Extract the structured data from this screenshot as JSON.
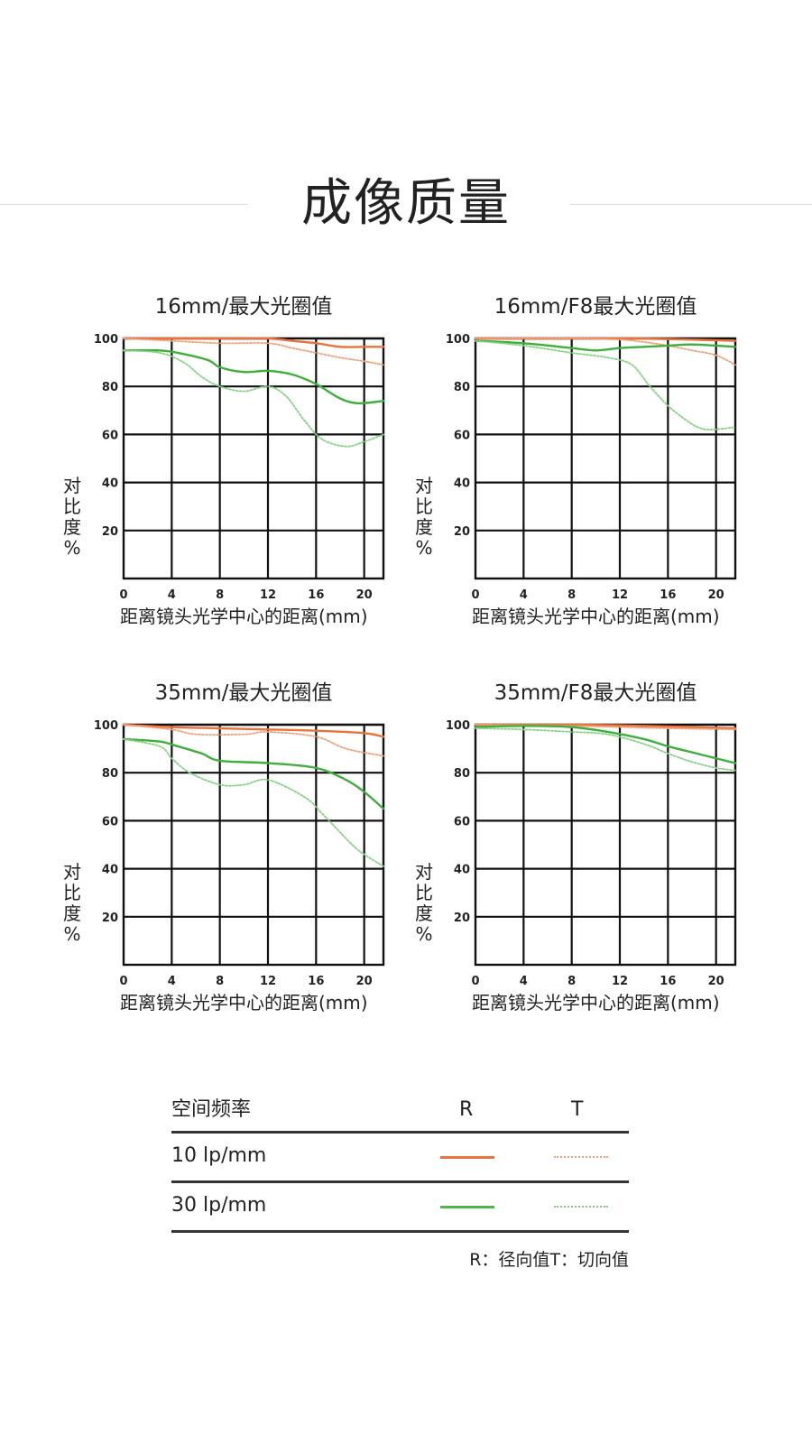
{
  "page_title": "成像质量",
  "colors": {
    "orange": "#e8743b",
    "green": "#4cb84a",
    "grid": "#111111"
  },
  "chart_data": [
    {
      "type": "line",
      "title": "16mm/最大光圈值",
      "ylabel": "对比度%",
      "ylabel_chars": [
        "对",
        "比",
        "度",
        "%"
      ],
      "xlabel": "距离镜头光学中心的距离(mm)",
      "xlim": [
        0,
        21.6
      ],
      "ylim": [
        0,
        100
      ],
      "xticks": [
        0,
        4,
        8,
        12,
        16,
        20
      ],
      "yticks": [
        20,
        40,
        60,
        80,
        100
      ],
      "grid": true,
      "series": [
        {
          "name": "10 lp/mm R",
          "color": "orange",
          "dashed": false,
          "x": [
            0,
            4,
            8,
            12,
            14,
            16,
            18,
            20,
            21.6
          ],
          "y": [
            100,
            100,
            100,
            100,
            99,
            98,
            96.5,
            96.5,
            96.5
          ]
        },
        {
          "name": "10 lp/mm T",
          "color": "orange",
          "dashed": true,
          "x": [
            0,
            4,
            8,
            12,
            14,
            16,
            18,
            20,
            21.6
          ],
          "y": [
            100,
            99,
            98,
            98,
            96,
            94,
            92,
            90.5,
            89
          ]
        },
        {
          "name": "30 lp/mm R",
          "color": "green",
          "dashed": false,
          "x": [
            0,
            3,
            4.5,
            7,
            8,
            10,
            12,
            14,
            16,
            18,
            19.5,
            21.6
          ],
          "y": [
            95,
            95,
            94,
            91,
            88,
            86,
            86.5,
            85,
            81,
            75,
            73,
            74
          ]
        },
        {
          "name": "30 lp/mm T",
          "color": "green",
          "dashed": true,
          "x": [
            0,
            3,
            5,
            6.5,
            8,
            10,
            12,
            13.5,
            15,
            16.5,
            18.5,
            20,
            21.6
          ],
          "y": [
            95,
            94,
            90,
            84,
            80,
            78,
            80,
            76,
            66,
            58,
            55,
            57,
            60
          ]
        }
      ]
    },
    {
      "type": "line",
      "title": "16mm/F8最大光圈值",
      "ylabel": "对比度%",
      "ylabel_chars": [
        "对",
        "比",
        "度",
        "%"
      ],
      "xlabel": "距离镜头光学中心的距离(mm)",
      "xlim": [
        0,
        21.6
      ],
      "ylim": [
        0,
        100
      ],
      "xticks": [
        0,
        4,
        8,
        12,
        16,
        20
      ],
      "yticks": [
        20,
        40,
        60,
        80,
        100
      ],
      "grid": true,
      "series": [
        {
          "name": "10 lp/mm R",
          "color": "orange",
          "dashed": false,
          "x": [
            0,
            8,
            13,
            18,
            21.6
          ],
          "y": [
            100,
            100,
            100,
            99.5,
            99
          ]
        },
        {
          "name": "10 lp/mm T",
          "color": "orange",
          "dashed": true,
          "x": [
            0,
            8,
            12,
            14,
            16,
            18,
            20,
            21.6
          ],
          "y": [
            100,
            100,
            99.5,
            98.5,
            97,
            95,
            93,
            89
          ]
        },
        {
          "name": "30 lp/mm R",
          "color": "green",
          "dashed": false,
          "x": [
            0,
            4,
            8,
            10,
            12,
            14,
            16,
            18,
            20,
            21.6
          ],
          "y": [
            99,
            98,
            96,
            95,
            96,
            96.5,
            97,
            97.5,
            97,
            96.5
          ]
        },
        {
          "name": "30 lp/mm T",
          "color": "green",
          "dashed": true,
          "x": [
            0,
            4,
            8,
            11,
            13,
            14.5,
            16,
            17.5,
            18.5,
            19.5,
            21.6
          ],
          "y": [
            99,
            97,
            94,
            92,
            89,
            80,
            72,
            66,
            63,
            62,
            63
          ]
        }
      ]
    },
    {
      "type": "line",
      "title": "35mm/最大光圈值",
      "ylabel": "对比度%",
      "ylabel_chars": [
        "对",
        "比",
        "度",
        "%"
      ],
      "xlabel": "距离镜头光学中心的距离(mm)",
      "xlim": [
        0,
        21.6
      ],
      "ylim": [
        0,
        100
      ],
      "xticks": [
        0,
        4,
        8,
        12,
        16,
        20
      ],
      "yticks": [
        20,
        40,
        60,
        80,
        100
      ],
      "grid": true,
      "series": [
        {
          "name": "10 lp/mm R",
          "color": "orange",
          "dashed": false,
          "x": [
            0,
            4,
            8,
            12,
            16,
            20,
            21.6
          ],
          "y": [
            100,
            99,
            98.5,
            98,
            97.5,
            96.5,
            95
          ]
        },
        {
          "name": "10 lp/mm T",
          "color": "orange",
          "dashed": true,
          "x": [
            0,
            4,
            6,
            10,
            12,
            16,
            18.5,
            21.6
          ],
          "y": [
            100,
            98,
            96,
            96,
            97,
            95,
            90,
            87
          ]
        },
        {
          "name": "30 lp/mm R",
          "color": "green",
          "dashed": false,
          "x": [
            0,
            3,
            4.5,
            6.5,
            8,
            12,
            16,
            18.5,
            20,
            21.6
          ],
          "y": [
            94,
            93,
            91,
            88,
            85,
            84,
            82,
            77,
            72,
            65
          ]
        },
        {
          "name": "30 lp/mm T",
          "color": "green",
          "dashed": true,
          "x": [
            0,
            3,
            4,
            5.5,
            8,
            10,
            12,
            15,
            16.5,
            19,
            20,
            21.6
          ],
          "y": [
            94,
            91,
            86,
            80,
            75,
            75,
            77,
            70,
            63,
            50,
            46,
            41
          ]
        }
      ]
    },
    {
      "type": "line",
      "title": "35mm/F8最大光圈值",
      "ylabel": "对比度%",
      "ylabel_chars": [
        "对",
        "比",
        "度",
        "%"
      ],
      "xlabel": "距离镜头光学中心的距离(mm)",
      "xlim": [
        0,
        21.6
      ],
      "ylim": [
        0,
        100
      ],
      "xticks": [
        0,
        4,
        8,
        12,
        16,
        20
      ],
      "yticks": [
        20,
        40,
        60,
        80,
        100
      ],
      "grid": true,
      "series": [
        {
          "name": "10 lp/mm R",
          "color": "orange",
          "dashed": false,
          "x": [
            0,
            8,
            14,
            18,
            21.6
          ],
          "y": [
            100,
            100,
            99.5,
            99,
            98.5
          ]
        },
        {
          "name": "10 lp/mm T",
          "color": "orange",
          "dashed": true,
          "x": [
            0,
            8,
            12,
            16,
            21.6
          ],
          "y": [
            100,
            99.5,
            99,
            98.5,
            98
          ]
        },
        {
          "name": "30 lp/mm R",
          "color": "green",
          "dashed": false,
          "x": [
            0,
            4,
            8,
            11,
            14,
            16,
            18,
            20,
            21.6
          ],
          "y": [
            99,
            99.5,
            99,
            97,
            94,
            91,
            88.5,
            86,
            84
          ]
        },
        {
          "name": "30 lp/mm T",
          "color": "green",
          "dashed": true,
          "x": [
            0,
            4,
            8,
            11,
            14,
            16,
            18,
            20,
            21.6
          ],
          "y": [
            98.5,
            98,
            97,
            96,
            92,
            88,
            84.5,
            82,
            81
          ]
        }
      ]
    }
  ],
  "legend": {
    "header": {
      "frequency": "空间频率",
      "r": "R",
      "t": "T"
    },
    "rows": [
      {
        "label": "10 lp/mm",
        "color": "orange"
      },
      {
        "label": "30 lp/mm",
        "color": "green"
      }
    ],
    "note": "R：径向值T：切向值"
  }
}
